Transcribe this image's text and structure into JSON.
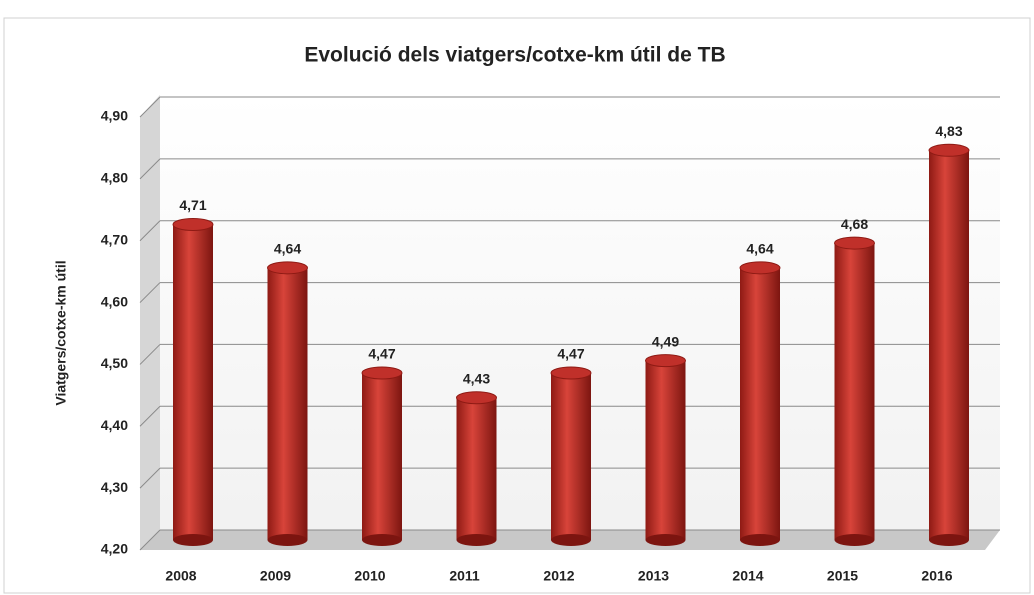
{
  "chart_data": {
    "type": "bar",
    "title": "Evolució dels viatgers/cotxe-km útil de TB",
    "y_label": "Viatgers/cotxe-km útil",
    "categories": [
      "2008",
      "2009",
      "2010",
      "2011",
      "2012",
      "2013",
      "2014",
      "2015",
      "2016"
    ],
    "values": [
      4.71,
      4.64,
      4.47,
      4.43,
      4.47,
      4.49,
      4.64,
      4.68,
      4.83
    ],
    "value_labels": [
      "4,71",
      "4,64",
      "4,47",
      "4,43",
      "4,47",
      "4,49",
      "4,64",
      "4,68",
      "4,83"
    ],
    "color": "#c0302a",
    "ylim": [
      4.2,
      4.9
    ],
    "yticks": [
      {
        "value": 4.2,
        "label": "4,20"
      },
      {
        "value": 4.3,
        "label": "4,30"
      },
      {
        "value": 4.4,
        "label": "4,40"
      },
      {
        "value": 4.5,
        "label": "4,50"
      },
      {
        "value": 4.6,
        "label": "4,60"
      },
      {
        "value": 4.7,
        "label": "4,70"
      },
      {
        "value": 4.8,
        "label": "4,80"
      },
      {
        "value": 4.9,
        "label": "4,90"
      }
    ],
    "grid": true
  }
}
